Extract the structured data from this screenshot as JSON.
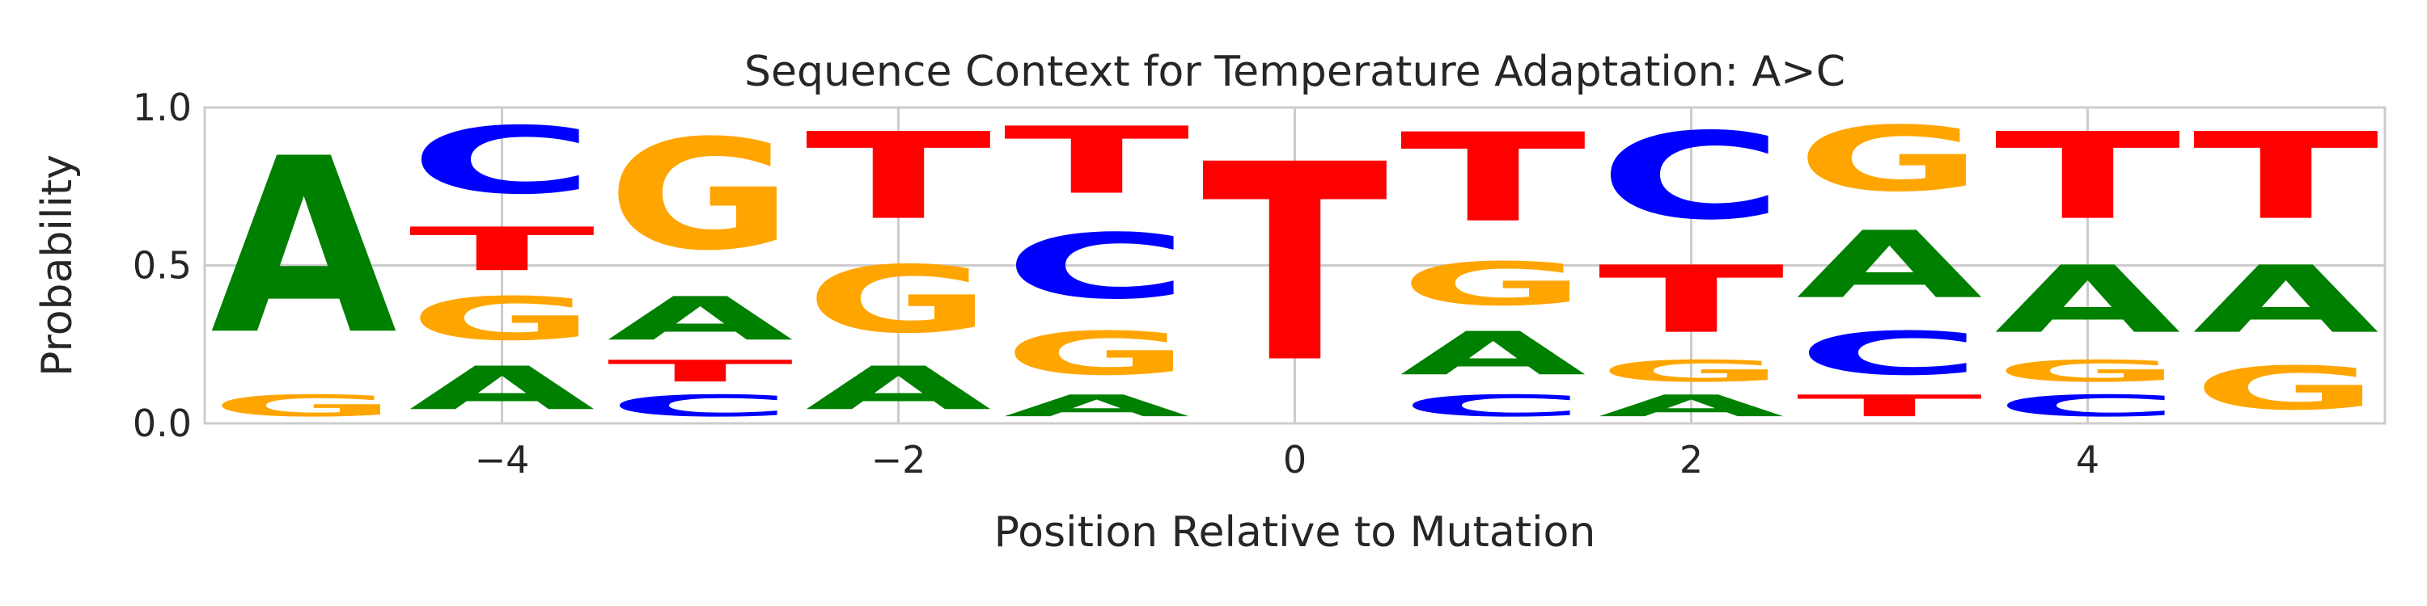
{
  "chart_data": {
    "type": "sequence-logo",
    "title": "Sequence Context for Temperature Adaptation: A>C",
    "xlabel": "Position Relative to Mutation",
    "ylabel": "Probability",
    "xlim": [
      -5.5,
      5.5
    ],
    "ylim": [
      0.0,
      1.0
    ],
    "xticks": [
      -4,
      -2,
      0,
      2,
      4
    ],
    "xtick_labels": [
      "−4",
      "−2",
      "0",
      "2",
      "4"
    ],
    "yticks": [
      0.0,
      0.5,
      1.0
    ],
    "ytick_labels": [
      "0.0",
      "0.5",
      "1.0"
    ],
    "grid": true,
    "colors": {
      "A": "#008000",
      "C": "#0000ff",
      "G": "#ffa500",
      "T": "#ff0000"
    },
    "positions": [
      {
        "pos": -5,
        "stack": [
          {
            "base": "G",
            "p": 0.11
          },
          {
            "base": "A",
            "p": 0.89
          }
        ]
      },
      {
        "pos": -4,
        "stack": [
          {
            "base": "A",
            "p": 0.22
          },
          {
            "base": "G",
            "p": 0.22
          },
          {
            "base": "T",
            "p": 0.22
          },
          {
            "base": "C",
            "p": 0.34
          }
        ]
      },
      {
        "pos": -3,
        "stack": [
          {
            "base": "C",
            "p": 0.11
          },
          {
            "base": "T",
            "p": 0.11
          },
          {
            "base": "A",
            "p": 0.22
          },
          {
            "base": "G",
            "p": 0.56
          }
        ]
      },
      {
        "pos": -2,
        "stack": [
          {
            "base": "A",
            "p": 0.22
          },
          {
            "base": "G",
            "p": 0.34
          },
          {
            "base": "T",
            "p": 0.44
          }
        ]
      },
      {
        "pos": -1,
        "stack": [
          {
            "base": "A",
            "p": 0.11
          },
          {
            "base": "G",
            "p": 0.22
          },
          {
            "base": "C",
            "p": 0.33
          },
          {
            "base": "T",
            "p": 0.34
          }
        ]
      },
      {
        "pos": 0,
        "stack": [
          {
            "base": "T",
            "p": 1.0
          }
        ]
      },
      {
        "pos": 1,
        "stack": [
          {
            "base": "C",
            "p": 0.11
          },
          {
            "base": "A",
            "p": 0.22
          },
          {
            "base": "G",
            "p": 0.22
          },
          {
            "base": "T",
            "p": 0.45
          }
        ]
      },
      {
        "pos": 2,
        "stack": [
          {
            "base": "A",
            "p": 0.11
          },
          {
            "base": "G",
            "p": 0.11
          },
          {
            "base": "T",
            "p": 0.34
          },
          {
            "base": "C",
            "p": 0.44
          }
        ]
      },
      {
        "pos": 3,
        "stack": [
          {
            "base": "T",
            "p": 0.11
          },
          {
            "base": "C",
            "p": 0.22
          },
          {
            "base": "A",
            "p": 0.34
          },
          {
            "base": "G",
            "p": 0.33
          }
        ]
      },
      {
        "pos": 4,
        "stack": [
          {
            "base": "C",
            "p": 0.11
          },
          {
            "base": "G",
            "p": 0.11
          },
          {
            "base": "A",
            "p": 0.34
          },
          {
            "base": "T",
            "p": 0.44
          }
        ]
      },
      {
        "pos": 5,
        "stack": [
          {
            "base": "G",
            "p": 0.22
          },
          {
            "base": "A",
            "p": 0.34
          },
          {
            "base": "T",
            "p": 0.44
          }
        ]
      }
    ]
  }
}
